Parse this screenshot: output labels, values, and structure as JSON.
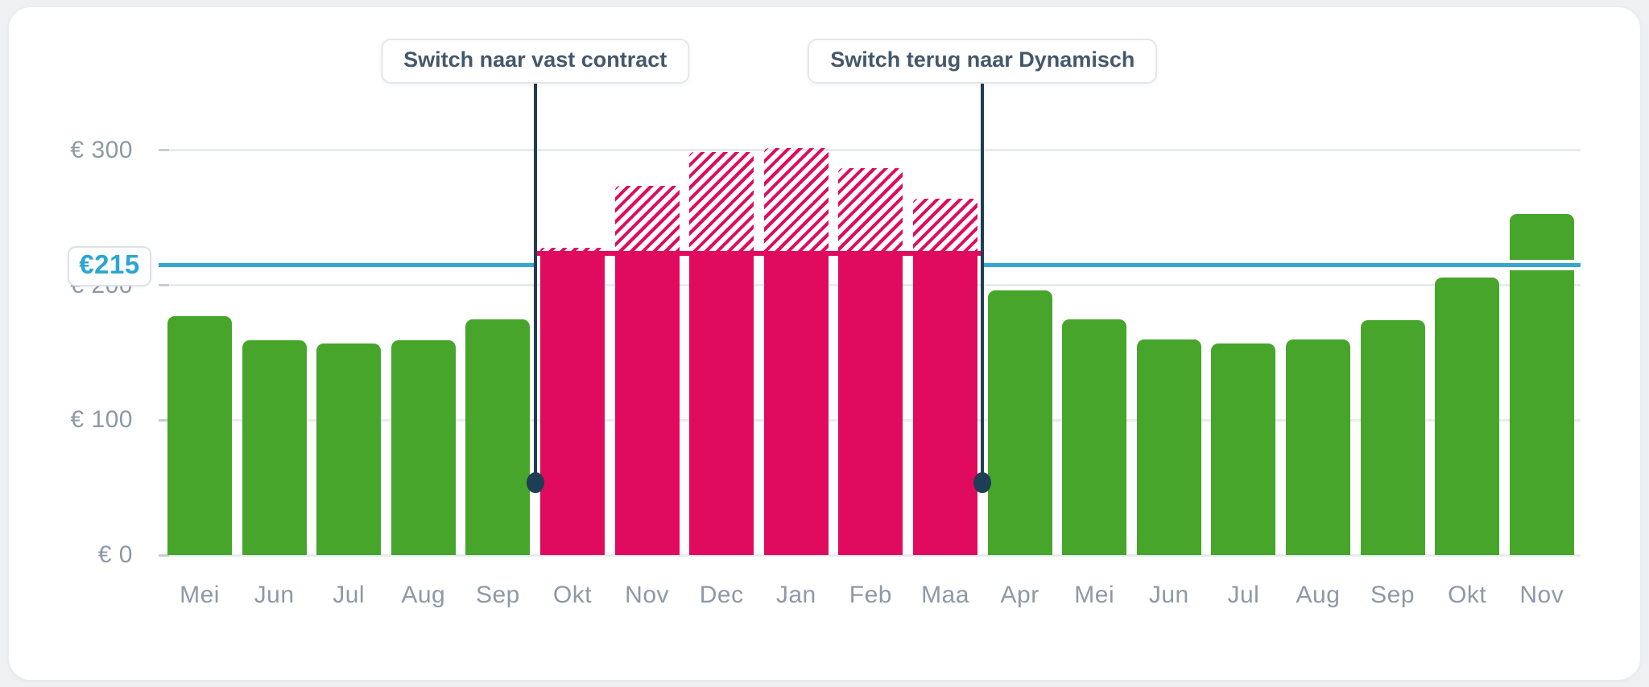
{
  "colors": {
    "green": "#47a52c",
    "pink": "#e00a5e",
    "blue": "#34a8d0",
    "blue_text": "#2ba6cf",
    "navy": "#1f3d54",
    "axis_text": "#8d99a6",
    "annotation_text": "#44586b",
    "gridline": "#e8ebee",
    "card_bg": "#ffffff",
    "page_bg": "#eef0f2"
  },
  "y_axis": {
    "tick_labels": [
      "€ 300",
      "€ 200",
      "€ 100",
      "€ 0"
    ]
  },
  "chart_data": {
    "type": "bar",
    "currency": "EUR",
    "categories": [
      "Mei",
      "Jun",
      "Jul",
      "Aug",
      "Sep",
      "Okt",
      "Nov",
      "Dec",
      "Jan",
      "Feb",
      "Maa",
      "Apr",
      "Mei",
      "Jun",
      "Jul",
      "Aug",
      "Sep",
      "Okt",
      "Nov"
    ],
    "series": [
      {
        "name": "green_dynamic_cost",
        "values": [
          177,
          159,
          157,
          159,
          175,
          null,
          null,
          null,
          null,
          null,
          null,
          196,
          175,
          160,
          157,
          160,
          174,
          206,
          253
        ]
      },
      {
        "name": "pink_fixed_contract_cost",
        "values": [
          null,
          null,
          null,
          null,
          null,
          222,
          222,
          222,
          222,
          222,
          222,
          null,
          null,
          null,
          null,
          null,
          null,
          null,
          null
        ]
      },
      {
        "name": "pink_hatched_dynamic_during_fixed",
        "values": [
          null,
          null,
          null,
          null,
          null,
          228,
          274,
          299,
          302,
          287,
          264,
          null,
          null,
          null,
          null,
          null,
          null,
          null,
          null
        ]
      }
    ],
    "yticks": [
      300,
      200,
      100,
      0
    ],
    "ylim": [
      0,
      330
    ],
    "grid": true,
    "reference_line": {
      "label": "€215",
      "value": 215
    },
    "annotations": [
      {
        "label": "Switch naar vast contract",
        "after_index": 4
      },
      {
        "label": "Switch terug naar Dynamisch",
        "after_index": 10
      }
    ]
  }
}
